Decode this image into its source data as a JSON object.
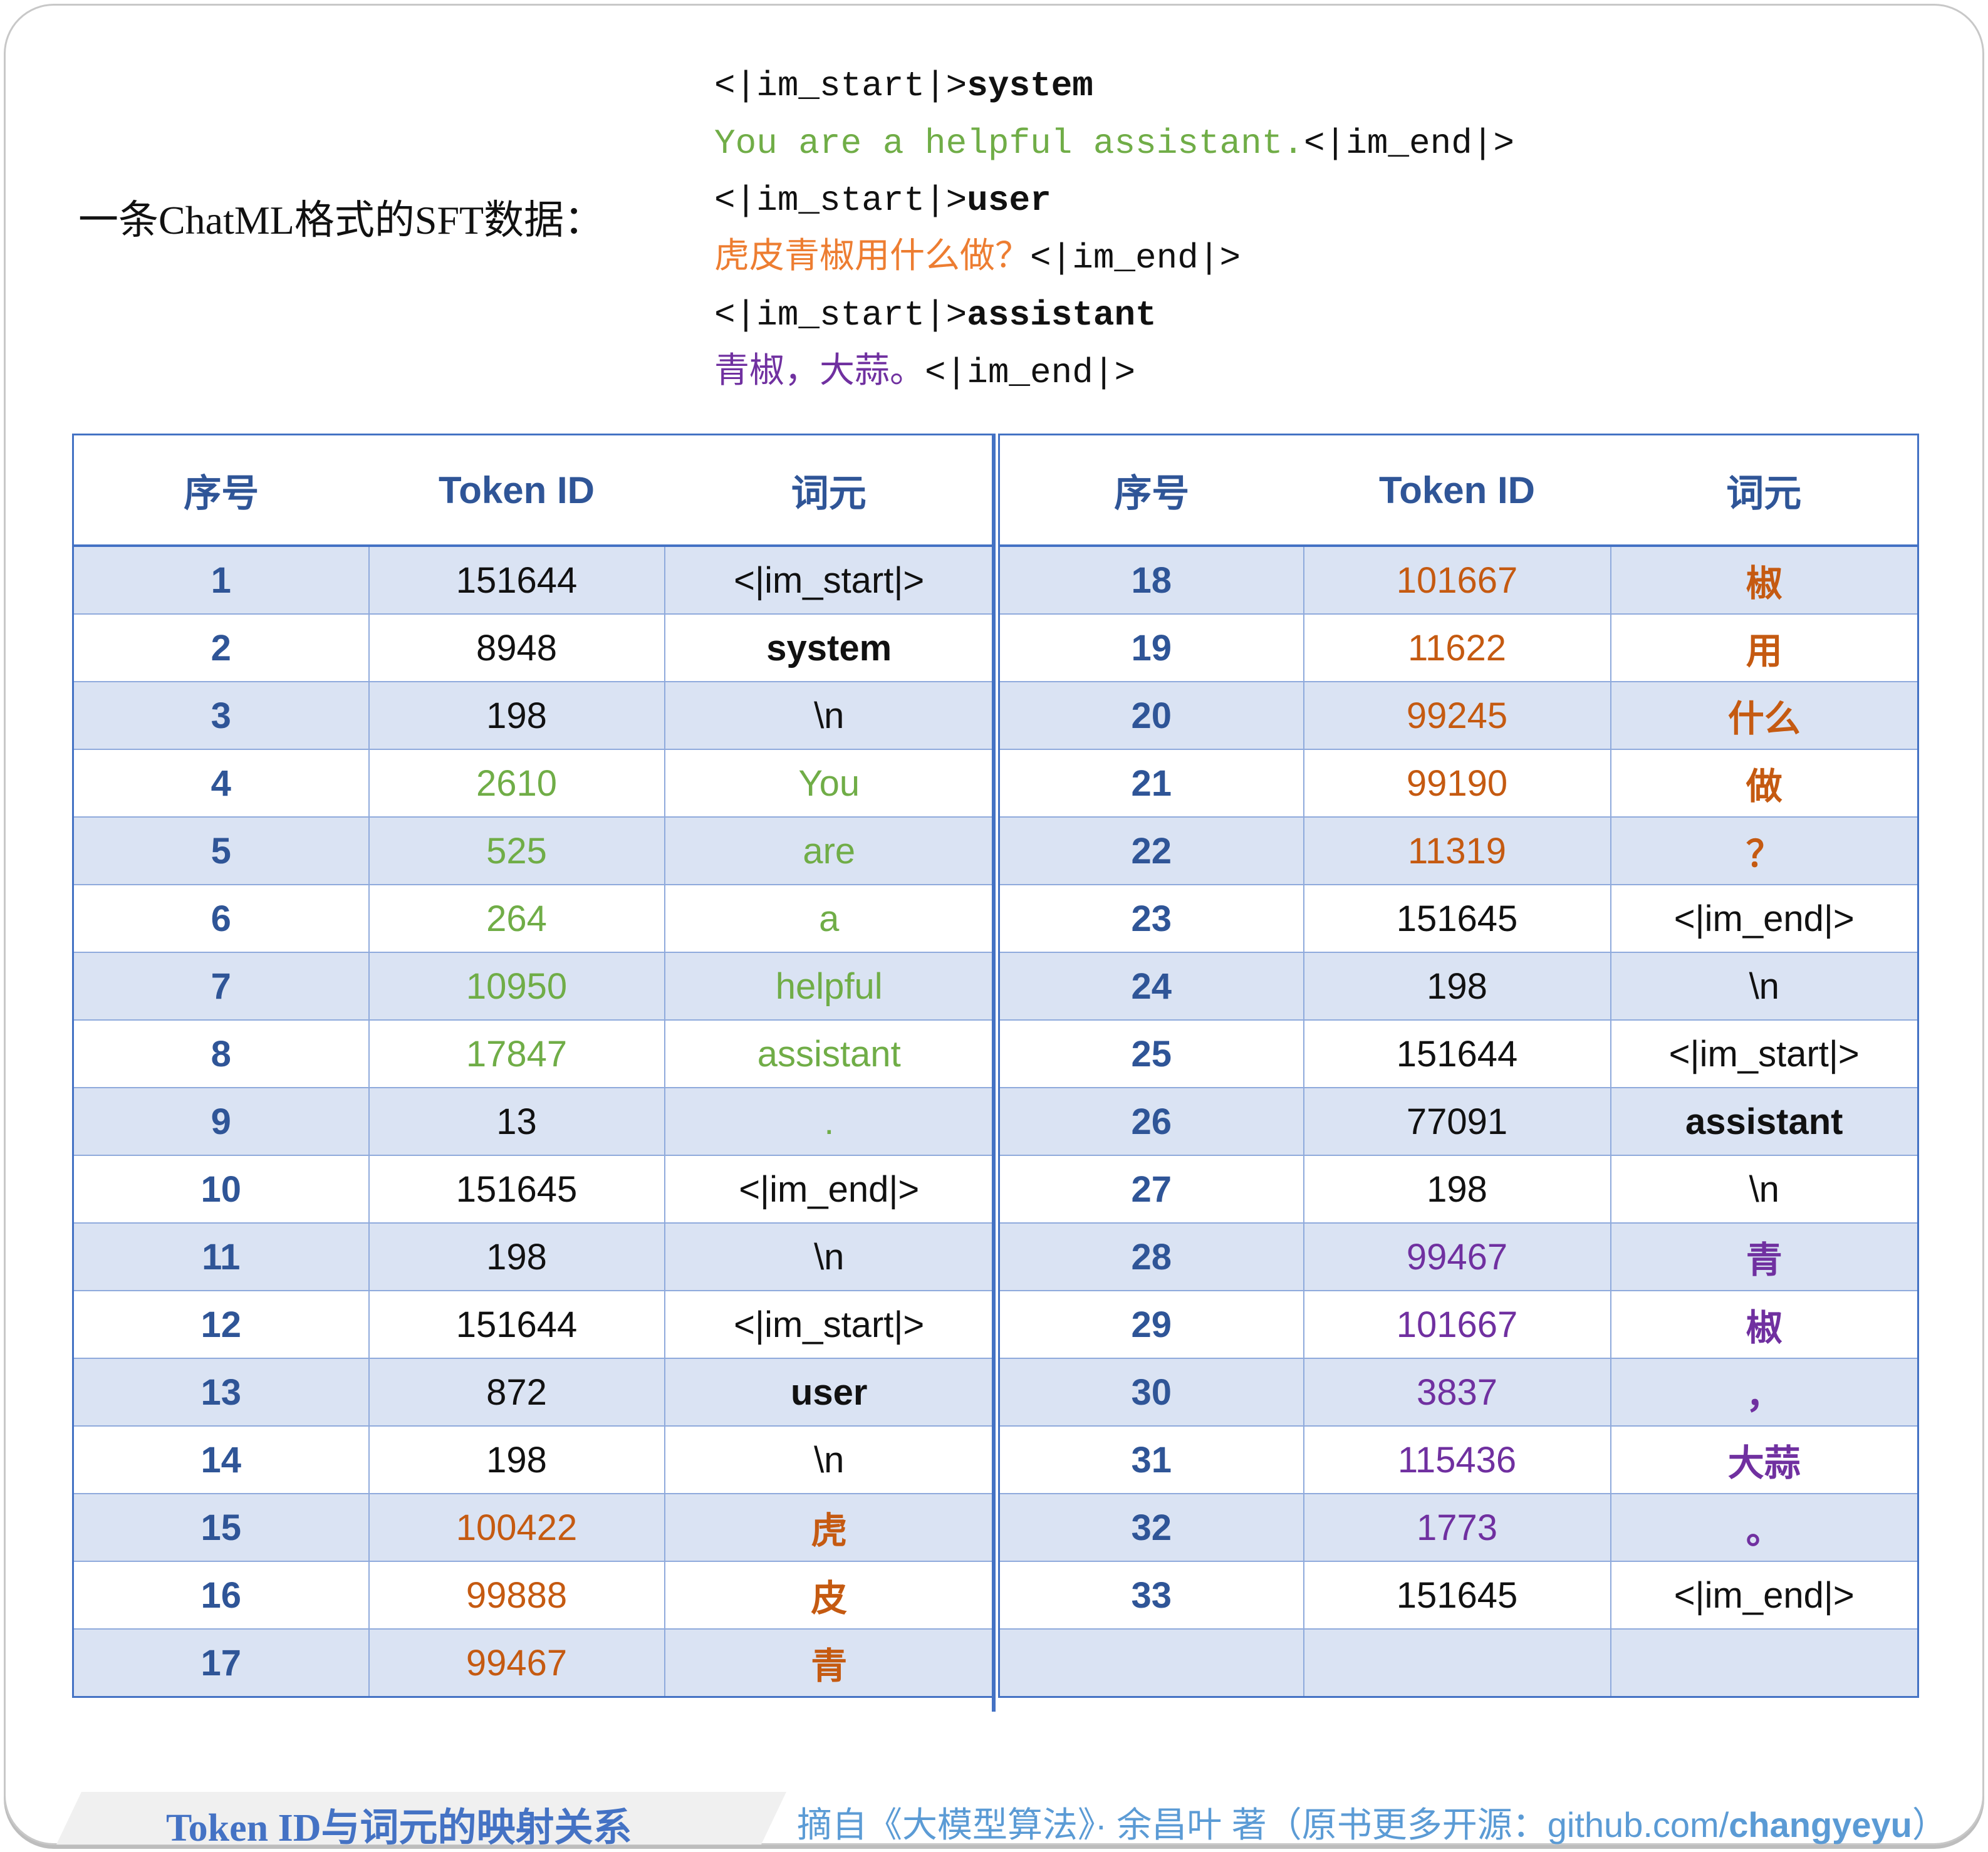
{
  "intro_label": "一条ChatML格式的SFT数据：",
  "code": {
    "line1_prefix": "<|im_start|>",
    "line1_role": "system",
    "line2_text": "You are a helpful assistant.",
    "line2_end": "<|im_end|>",
    "line3_prefix": "<|im_start|>",
    "line3_role": "user",
    "line4_text": "虎皮青椒用什么做？",
    "line4_end": "<|im_end|>",
    "line5_prefix": "<|im_start|>",
    "line5_role": "assistant",
    "line6_text": "青椒，大蒜。",
    "line6_end": "<|im_end|>"
  },
  "colors": {
    "system_text": "#70ad47",
    "user_text": "#c55a11",
    "assistant_text": "#7030a0",
    "header": "#2f5597",
    "stripe": "#dae3f3",
    "border": "#4472c4"
  },
  "table": {
    "headers": [
      "序号",
      "Token ID",
      "词元"
    ],
    "left_rows": [
      {
        "n": "1",
        "id": "151644",
        "token": "<|im_start|>",
        "color": "",
        "bold": false
      },
      {
        "n": "2",
        "id": "8948",
        "token": "system",
        "color": "",
        "bold": true
      },
      {
        "n": "3",
        "id": "198",
        "token": "\\n",
        "color": "",
        "bold": false
      },
      {
        "n": "4",
        "id": "2610",
        "token": "You",
        "color": "green",
        "bold": false
      },
      {
        "n": "5",
        "id": "525",
        "token": "are",
        "color": "green",
        "bold": false
      },
      {
        "n": "6",
        "id": "264",
        "token": "a",
        "color": "green",
        "bold": false
      },
      {
        "n": "7",
        "id": "10950",
        "token": "helpful",
        "color": "green",
        "bold": false
      },
      {
        "n": "8",
        "id": "17847",
        "token": "assistant",
        "color": "green",
        "bold": false
      },
      {
        "n": "9",
        "id": "13",
        "token": ".",
        "color": "green",
        "id_color": "",
        "bold": false
      },
      {
        "n": "10",
        "id": "151645",
        "token": "<|im_end|>",
        "color": "",
        "bold": false
      },
      {
        "n": "11",
        "id": "198",
        "token": "\\n",
        "color": "",
        "bold": false
      },
      {
        "n": "12",
        "id": "151644",
        "token": "<|im_start|>",
        "color": "",
        "bold": false
      },
      {
        "n": "13",
        "id": "872",
        "token": "user",
        "color": "",
        "bold": true
      },
      {
        "n": "14",
        "id": "198",
        "token": "\\n",
        "color": "",
        "bold": false
      },
      {
        "n": "15",
        "id": "100422",
        "token": "虎",
        "color": "orange",
        "bold": true
      },
      {
        "n": "16",
        "id": "99888",
        "token": "皮",
        "color": "orange",
        "bold": true
      },
      {
        "n": "17",
        "id": "99467",
        "token": "青",
        "color": "orange",
        "bold": true
      }
    ],
    "right_rows": [
      {
        "n": "18",
        "id": "101667",
        "token": "椒",
        "color": "orange",
        "bold": true
      },
      {
        "n": "19",
        "id": "11622",
        "token": "用",
        "color": "orange",
        "bold": true
      },
      {
        "n": "20",
        "id": "99245",
        "token": "什么",
        "color": "orange",
        "bold": true
      },
      {
        "n": "21",
        "id": "99190",
        "token": "做",
        "color": "orange",
        "bold": true
      },
      {
        "n": "22",
        "id": "11319",
        "token": "？",
        "color": "orange",
        "bold": true
      },
      {
        "n": "23",
        "id": "151645",
        "token": "<|im_end|>",
        "color": "",
        "bold": false
      },
      {
        "n": "24",
        "id": "198",
        "token": "\\n",
        "color": "",
        "bold": false
      },
      {
        "n": "25",
        "id": "151644",
        "token": "<|im_start|>",
        "color": "",
        "bold": false
      },
      {
        "n": "26",
        "id": "77091",
        "token": "assistant",
        "color": "",
        "bold": true
      },
      {
        "n": "27",
        "id": "198",
        "token": "\\n",
        "color": "",
        "bold": false
      },
      {
        "n": "28",
        "id": "99467",
        "token": "青",
        "color": "purple",
        "bold": true
      },
      {
        "n": "29",
        "id": "101667",
        "token": "椒",
        "color": "purple",
        "bold": true
      },
      {
        "n": "30",
        "id": "3837",
        "token": "，",
        "color": "purple",
        "bold": true
      },
      {
        "n": "31",
        "id": "115436",
        "token": "大蒜",
        "color": "purple",
        "bold": true
      },
      {
        "n": "32",
        "id": "1773",
        "token": "。",
        "color": "purple",
        "bold": true
      },
      {
        "n": "33",
        "id": "151645",
        "token": "<|im_end|>",
        "color": "",
        "bold": false
      },
      {
        "n": "",
        "id": "",
        "token": "",
        "color": "",
        "bold": false
      }
    ]
  },
  "footer": {
    "title": "Token ID与词元的映射关系",
    "source_prefix": "摘自《大模型算法》· 余昌叶 著（原书更多开源：github.com/",
    "source_bold": "changyeyu",
    "source_suffix": "）"
  }
}
